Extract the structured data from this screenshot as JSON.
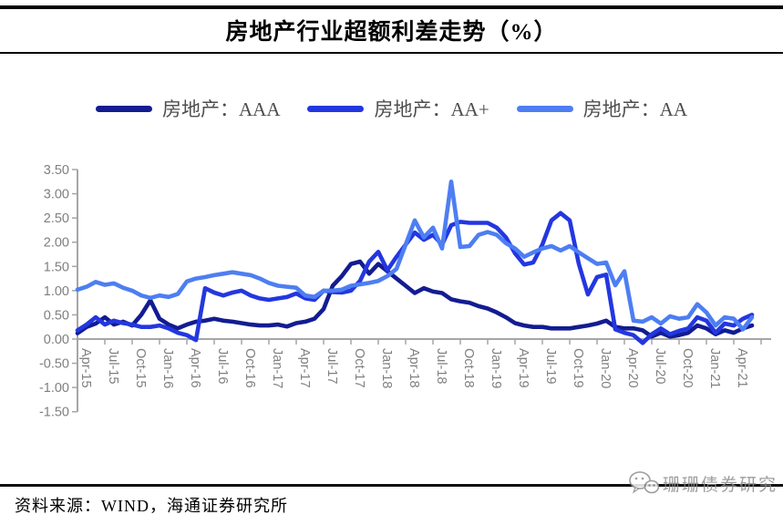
{
  "header": {
    "title": "房地产行业超额利差走势（%）"
  },
  "legend": {
    "items": [
      {
        "label": "房地产：AAA",
        "color": "#131c91"
      },
      {
        "label": "房地产：AA+",
        "color": "#2337e0"
      },
      {
        "label": "房地产：AA",
        "color": "#4d7ef2"
      }
    ]
  },
  "footer": {
    "source": "资料来源：WIND，海通证券研究所",
    "watermark": "珊珊债券研究"
  },
  "chart_data": {
    "type": "line",
    "title": "房地产行业超额利差走势（%）",
    "xlabel": "",
    "ylabel": "",
    "ylim": [
      -1.5,
      3.5
    ],
    "grid": false,
    "legend_position": "top",
    "axis_color": "#a6a6a6",
    "tick_label_color": "#7f7f7f",
    "y_tick_labels": [
      "3.50",
      "3.00",
      "2.50",
      "2.00",
      "1.50",
      "1.00",
      "0.50",
      "0.00",
      "-0.50",
      "-1.00",
      "-1.50"
    ],
    "x_tick_every": 3,
    "x_tick_labels": [
      "Apr-15",
      "Jul-15",
      "Oct-15",
      "Jan-16",
      "Apr-16",
      "Jul-16",
      "Oct-16",
      "Jan-17",
      "Apr-17",
      "Jul-17",
      "Oct-17",
      "Jan-18",
      "Apr-18",
      "Jul-18",
      "Oct-18",
      "Jan-19",
      "Apr-19",
      "Jul-19",
      "Oct-19",
      "Jan-20",
      "Apr-20",
      "Jul-20",
      "Oct-20",
      "Jan-21",
      "Apr-21"
    ],
    "x": [
      "Apr-15",
      "May-15",
      "Jun-15",
      "Jul-15",
      "Aug-15",
      "Sep-15",
      "Oct-15",
      "Nov-15",
      "Dec-15",
      "Jan-16",
      "Feb-16",
      "Mar-16",
      "Apr-16",
      "May-16",
      "Jun-16",
      "Jul-16",
      "Aug-16",
      "Sep-16",
      "Oct-16",
      "Nov-16",
      "Dec-16",
      "Jan-17",
      "Feb-17",
      "Mar-17",
      "Apr-17",
      "May-17",
      "Jun-17",
      "Jul-17",
      "Aug-17",
      "Sep-17",
      "Oct-17",
      "Nov-17",
      "Dec-17",
      "Jan-18",
      "Feb-18",
      "Mar-18",
      "Apr-18",
      "May-18",
      "Jun-18",
      "Jul-18",
      "Aug-18",
      "Sep-18",
      "Oct-18",
      "Nov-18",
      "Dec-18",
      "Jan-19",
      "Feb-19",
      "Mar-19",
      "Apr-19",
      "May-19",
      "Jun-19",
      "Jul-19",
      "Aug-19",
      "Sep-19",
      "Oct-19",
      "Nov-19",
      "Dec-19",
      "Jan-20",
      "Feb-20",
      "Mar-20",
      "Apr-20",
      "May-20",
      "Jun-20",
      "Jul-20",
      "Aug-20",
      "Sep-20",
      "Oct-20",
      "Nov-20",
      "Dec-20",
      "Jan-21",
      "Feb-21",
      "Mar-21",
      "Apr-21",
      "May-21",
      "Jun-21"
    ],
    "series": [
      {
        "name": "房地产：AAA",
        "color": "#131c91",
        "values": [
          0.12,
          0.25,
          0.32,
          0.45,
          0.3,
          0.36,
          0.28,
          0.5,
          0.8,
          0.42,
          0.3,
          0.22,
          0.3,
          0.36,
          0.38,
          0.42,
          0.38,
          0.36,
          0.33,
          0.3,
          0.28,
          0.28,
          0.3,
          0.26,
          0.33,
          0.36,
          0.42,
          0.62,
          1.1,
          1.3,
          1.55,
          1.6,
          1.35,
          1.55,
          1.4,
          1.25,
          1.1,
          0.95,
          1.05,
          0.98,
          0.95,
          0.82,
          0.78,
          0.75,
          0.68,
          0.63,
          0.55,
          0.45,
          0.33,
          0.28,
          0.25,
          0.25,
          0.22,
          0.22,
          0.22,
          0.25,
          0.28,
          0.32,
          0.38,
          0.25,
          0.22,
          0.22,
          0.18,
          0.05,
          0.13,
          0.05,
          0.08,
          0.13,
          0.28,
          0.22,
          0.1,
          0.18,
          0.13,
          0.22,
          0.28
        ]
      },
      {
        "name": "房地产：AA+",
        "color": "#2337e0",
        "values": [
          0.18,
          0.3,
          0.45,
          0.3,
          0.38,
          0.33,
          0.3,
          0.25,
          0.25,
          0.28,
          0.22,
          0.13,
          0.08,
          -0.02,
          1.05,
          0.96,
          0.9,
          0.96,
          1.0,
          0.9,
          0.84,
          0.81,
          0.84,
          0.87,
          0.94,
          0.84,
          0.81,
          1.0,
          0.97,
          0.96,
          1.0,
          1.2,
          1.6,
          1.8,
          1.42,
          1.7,
          1.95,
          2.2,
          2.05,
          2.15,
          1.95,
          2.35,
          2.42,
          2.4,
          2.4,
          2.4,
          2.3,
          2.1,
          1.77,
          1.54,
          1.58,
          1.95,
          2.45,
          2.6,
          2.45,
          1.55,
          0.92,
          1.28,
          1.33,
          0.2,
          0.13,
          0.08,
          -0.08,
          0.1,
          0.22,
          0.1,
          0.17,
          0.22,
          0.45,
          0.38,
          0.13,
          0.32,
          0.28,
          0.42,
          0.5
        ]
      },
      {
        "name": "房地产：AA",
        "color": "#4d7ef2",
        "values": [
          1.02,
          1.08,
          1.18,
          1.12,
          1.15,
          1.06,
          1.0,
          0.9,
          0.85,
          0.9,
          0.87,
          0.93,
          1.19,
          1.25,
          1.28,
          1.32,
          1.35,
          1.38,
          1.35,
          1.32,
          1.25,
          1.16,
          1.1,
          1.08,
          1.06,
          0.9,
          0.87,
          1.0,
          1.0,
          1.02,
          1.1,
          1.13,
          1.16,
          1.2,
          1.3,
          1.45,
          1.95,
          2.45,
          2.1,
          2.3,
          1.87,
          3.25,
          1.9,
          1.92,
          2.15,
          2.21,
          2.15,
          1.98,
          1.87,
          1.7,
          1.79,
          1.87,
          1.92,
          1.83,
          1.92,
          1.79,
          1.67,
          1.55,
          1.58,
          1.11,
          1.4,
          0.38,
          0.36,
          0.45,
          0.32,
          0.47,
          0.42,
          0.45,
          0.72,
          0.55,
          0.28,
          0.45,
          0.42,
          0.2,
          0.45
        ]
      }
    ]
  }
}
